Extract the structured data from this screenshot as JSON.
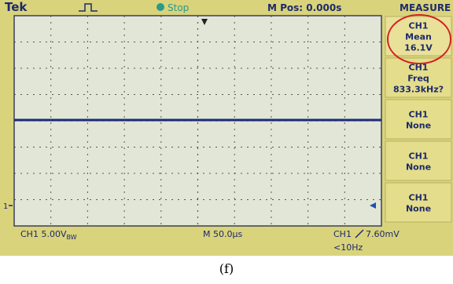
{
  "header": {
    "brand": "Tek",
    "state": "Stop",
    "position": "M Pos: 0.000s",
    "menu_title": "MEASURE"
  },
  "menu": [
    {
      "channel": "CH1",
      "label": "Mean",
      "value": "16.1V"
    },
    {
      "channel": "CH1",
      "label": "Freq",
      "value": "833.3kHz?"
    },
    {
      "channel": "CH1",
      "label": "None"
    },
    {
      "channel": "CH1",
      "label": "None"
    },
    {
      "channel": "CH1",
      "label": "None"
    }
  ],
  "footer": {
    "channel_scale": "CH1 5.00V",
    "bandwidth": "BW",
    "timebase": "M 50.0µs",
    "trigger_channel": "CH1",
    "trigger_level": "7.60mV",
    "trigger_freq": "<10Hz"
  },
  "marker": "1",
  "caption": "(f)"
}
